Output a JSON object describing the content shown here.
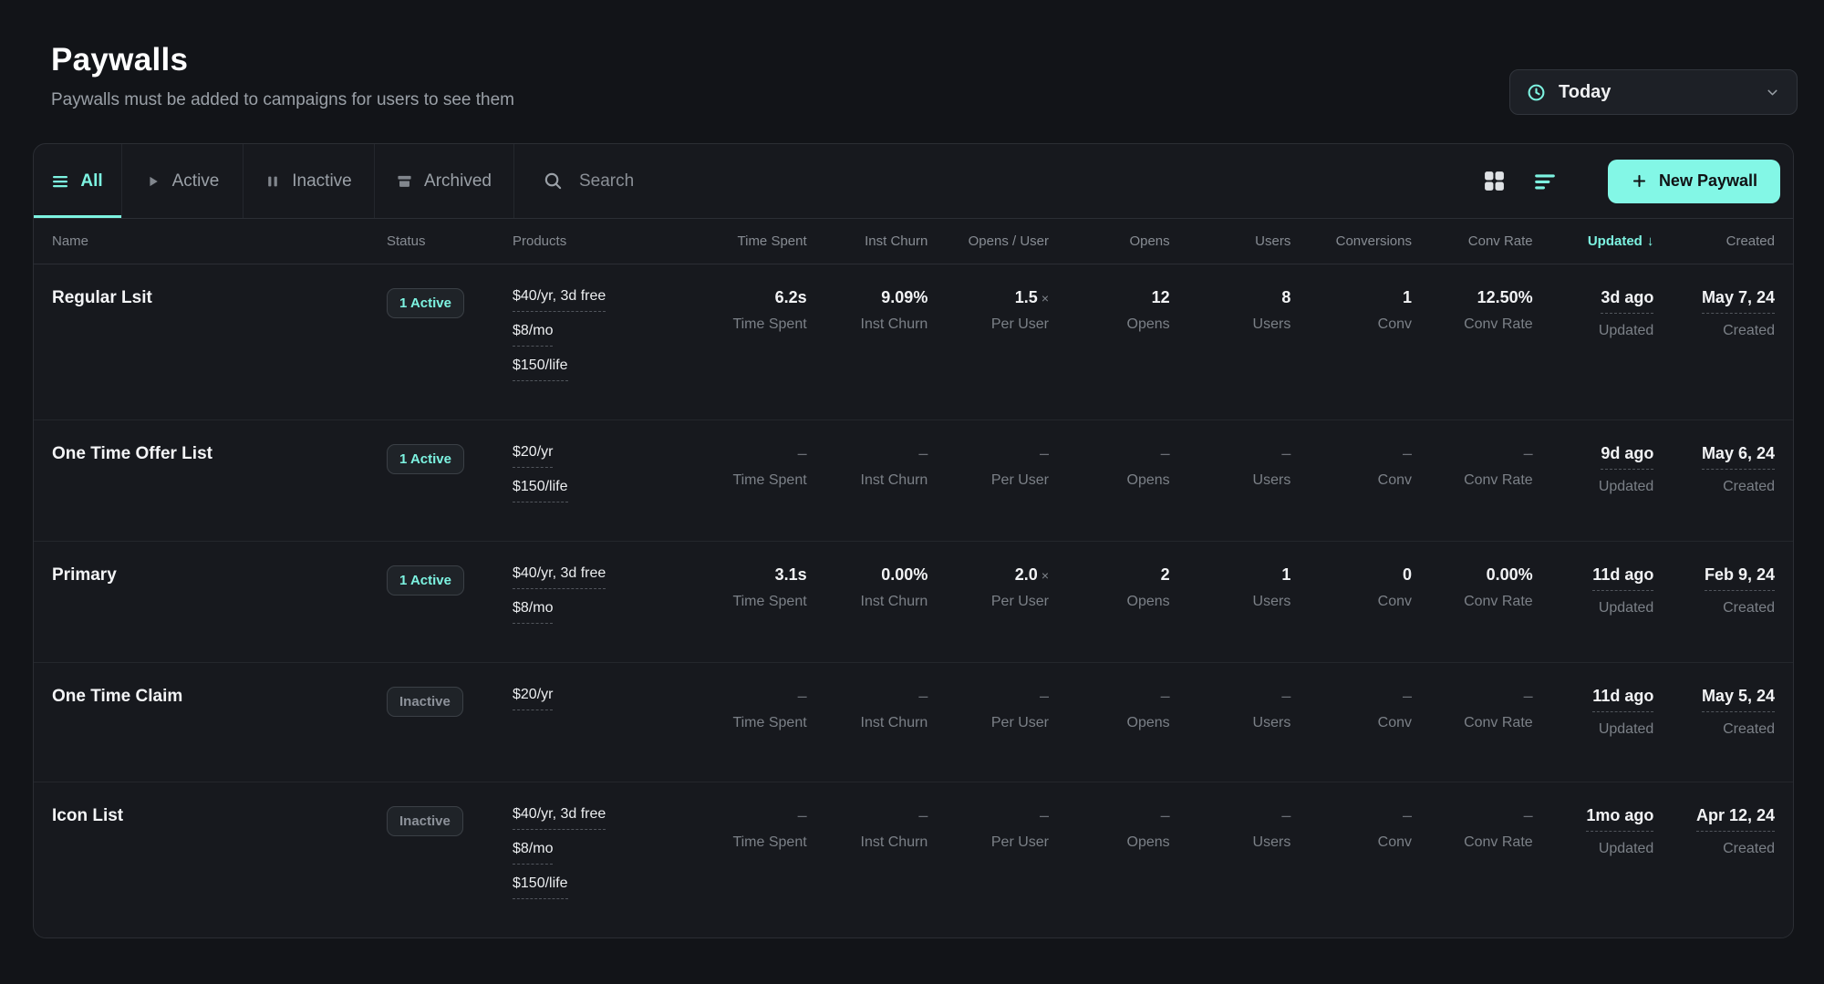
{
  "page": {
    "title": "Paywalls",
    "subtitle": "Paywalls must be added to campaigns for users to see them"
  },
  "date_filter": {
    "label": "Today",
    "icon": "clock",
    "chevron_icon": "chevron-down"
  },
  "toolbar": {
    "tabs": [
      {
        "label": "All",
        "icon": "list-lines",
        "selected": true
      },
      {
        "label": "Active",
        "icon": "play",
        "selected": false
      },
      {
        "label": "Inactive",
        "icon": "pause",
        "selected": false
      },
      {
        "label": "Archived",
        "icon": "archive-box",
        "selected": false
      }
    ],
    "search": {
      "placeholder": "Search",
      "icon": "magnifier"
    },
    "view_toggles": [
      {
        "name": "grid-view",
        "active": false
      },
      {
        "name": "list-view",
        "active": true
      }
    ],
    "new_paywall_label": "New Paywall",
    "new_paywall_icon": "plus"
  },
  "table": {
    "columns": [
      {
        "label": "Name"
      },
      {
        "label": "Status"
      },
      {
        "label": "Products"
      },
      {
        "label": "Time Spent"
      },
      {
        "label": "Inst Churn"
      },
      {
        "label": "Opens / User"
      },
      {
        "label": "Opens"
      },
      {
        "label": "Users"
      },
      {
        "label": "Conversions"
      },
      {
        "label": "Conv Rate"
      },
      {
        "label": "Updated"
      },
      {
        "label": "Created"
      }
    ],
    "sort": {
      "column": "Updated",
      "direction": "desc",
      "indicator": "↓"
    },
    "metric_labels": [
      "Time Spent",
      "Inst Churn",
      "Per User",
      "Opens",
      "Users",
      "Conv",
      "Conv Rate"
    ],
    "row_labels": {
      "updated": "Updated",
      "created": "Created"
    },
    "empty_value": "–",
    "rows": [
      {
        "name": "Regular Lsit",
        "status": "1 Active",
        "status_variant": "active",
        "products": [
          "$40/yr, 3d free",
          "$8/mo",
          "$150/life"
        ],
        "metrics": [
          {
            "value": "6.2s"
          },
          {
            "value": "9.09%"
          },
          {
            "value": "1.5",
            "suffix": "×"
          },
          {
            "value": "12"
          },
          {
            "value": "8"
          },
          {
            "value": "1"
          },
          {
            "value": "12.50%"
          }
        ],
        "updated": "3d ago",
        "created": "May 7, 24"
      },
      {
        "name": "One Time Offer List",
        "status": "1 Active",
        "status_variant": "active",
        "products": [
          "$20/yr",
          "$150/life"
        ],
        "metrics": [
          {
            "value": "–"
          },
          {
            "value": "–"
          },
          {
            "value": "–"
          },
          {
            "value": "–"
          },
          {
            "value": "–"
          },
          {
            "value": "–"
          },
          {
            "value": "–"
          }
        ],
        "updated": "9d ago",
        "created": "May 6, 24"
      },
      {
        "name": "Primary",
        "status": "1 Active",
        "status_variant": "active",
        "products": [
          "$40/yr, 3d free",
          "$8/mo"
        ],
        "metrics": [
          {
            "value": "3.1s"
          },
          {
            "value": "0.00%"
          },
          {
            "value": "2.0",
            "suffix": "×"
          },
          {
            "value": "2"
          },
          {
            "value": "1"
          },
          {
            "value": "0"
          },
          {
            "value": "0.00%"
          }
        ],
        "updated": "11d ago",
        "created": "Feb 9, 24"
      },
      {
        "name": "One Time Claim",
        "status": "Inactive",
        "status_variant": "inactive",
        "products": [
          "$20/yr"
        ],
        "metrics": [
          {
            "value": "–"
          },
          {
            "value": "–"
          },
          {
            "value": "–"
          },
          {
            "value": "–"
          },
          {
            "value": "–"
          },
          {
            "value": "–"
          },
          {
            "value": "–"
          }
        ],
        "updated": "11d ago",
        "created": "May 5, 24"
      },
      {
        "name": "Icon List",
        "status": "Inactive",
        "status_variant": "inactive",
        "products": [
          "$40/yr, 3d free",
          "$8/mo",
          "$150/life"
        ],
        "metrics": [
          {
            "value": "–"
          },
          {
            "value": "–"
          },
          {
            "value": "–"
          },
          {
            "value": "–"
          },
          {
            "value": "–"
          },
          {
            "value": "–"
          },
          {
            "value": "–"
          }
        ],
        "updated": "1mo ago",
        "created": "Apr 12, 24"
      }
    ]
  },
  "colors": {
    "accent": "#7DF3E1",
    "new_button_bg": "#83F7E6",
    "page_bg": "#121418",
    "panel_bg": "#17191E"
  }
}
